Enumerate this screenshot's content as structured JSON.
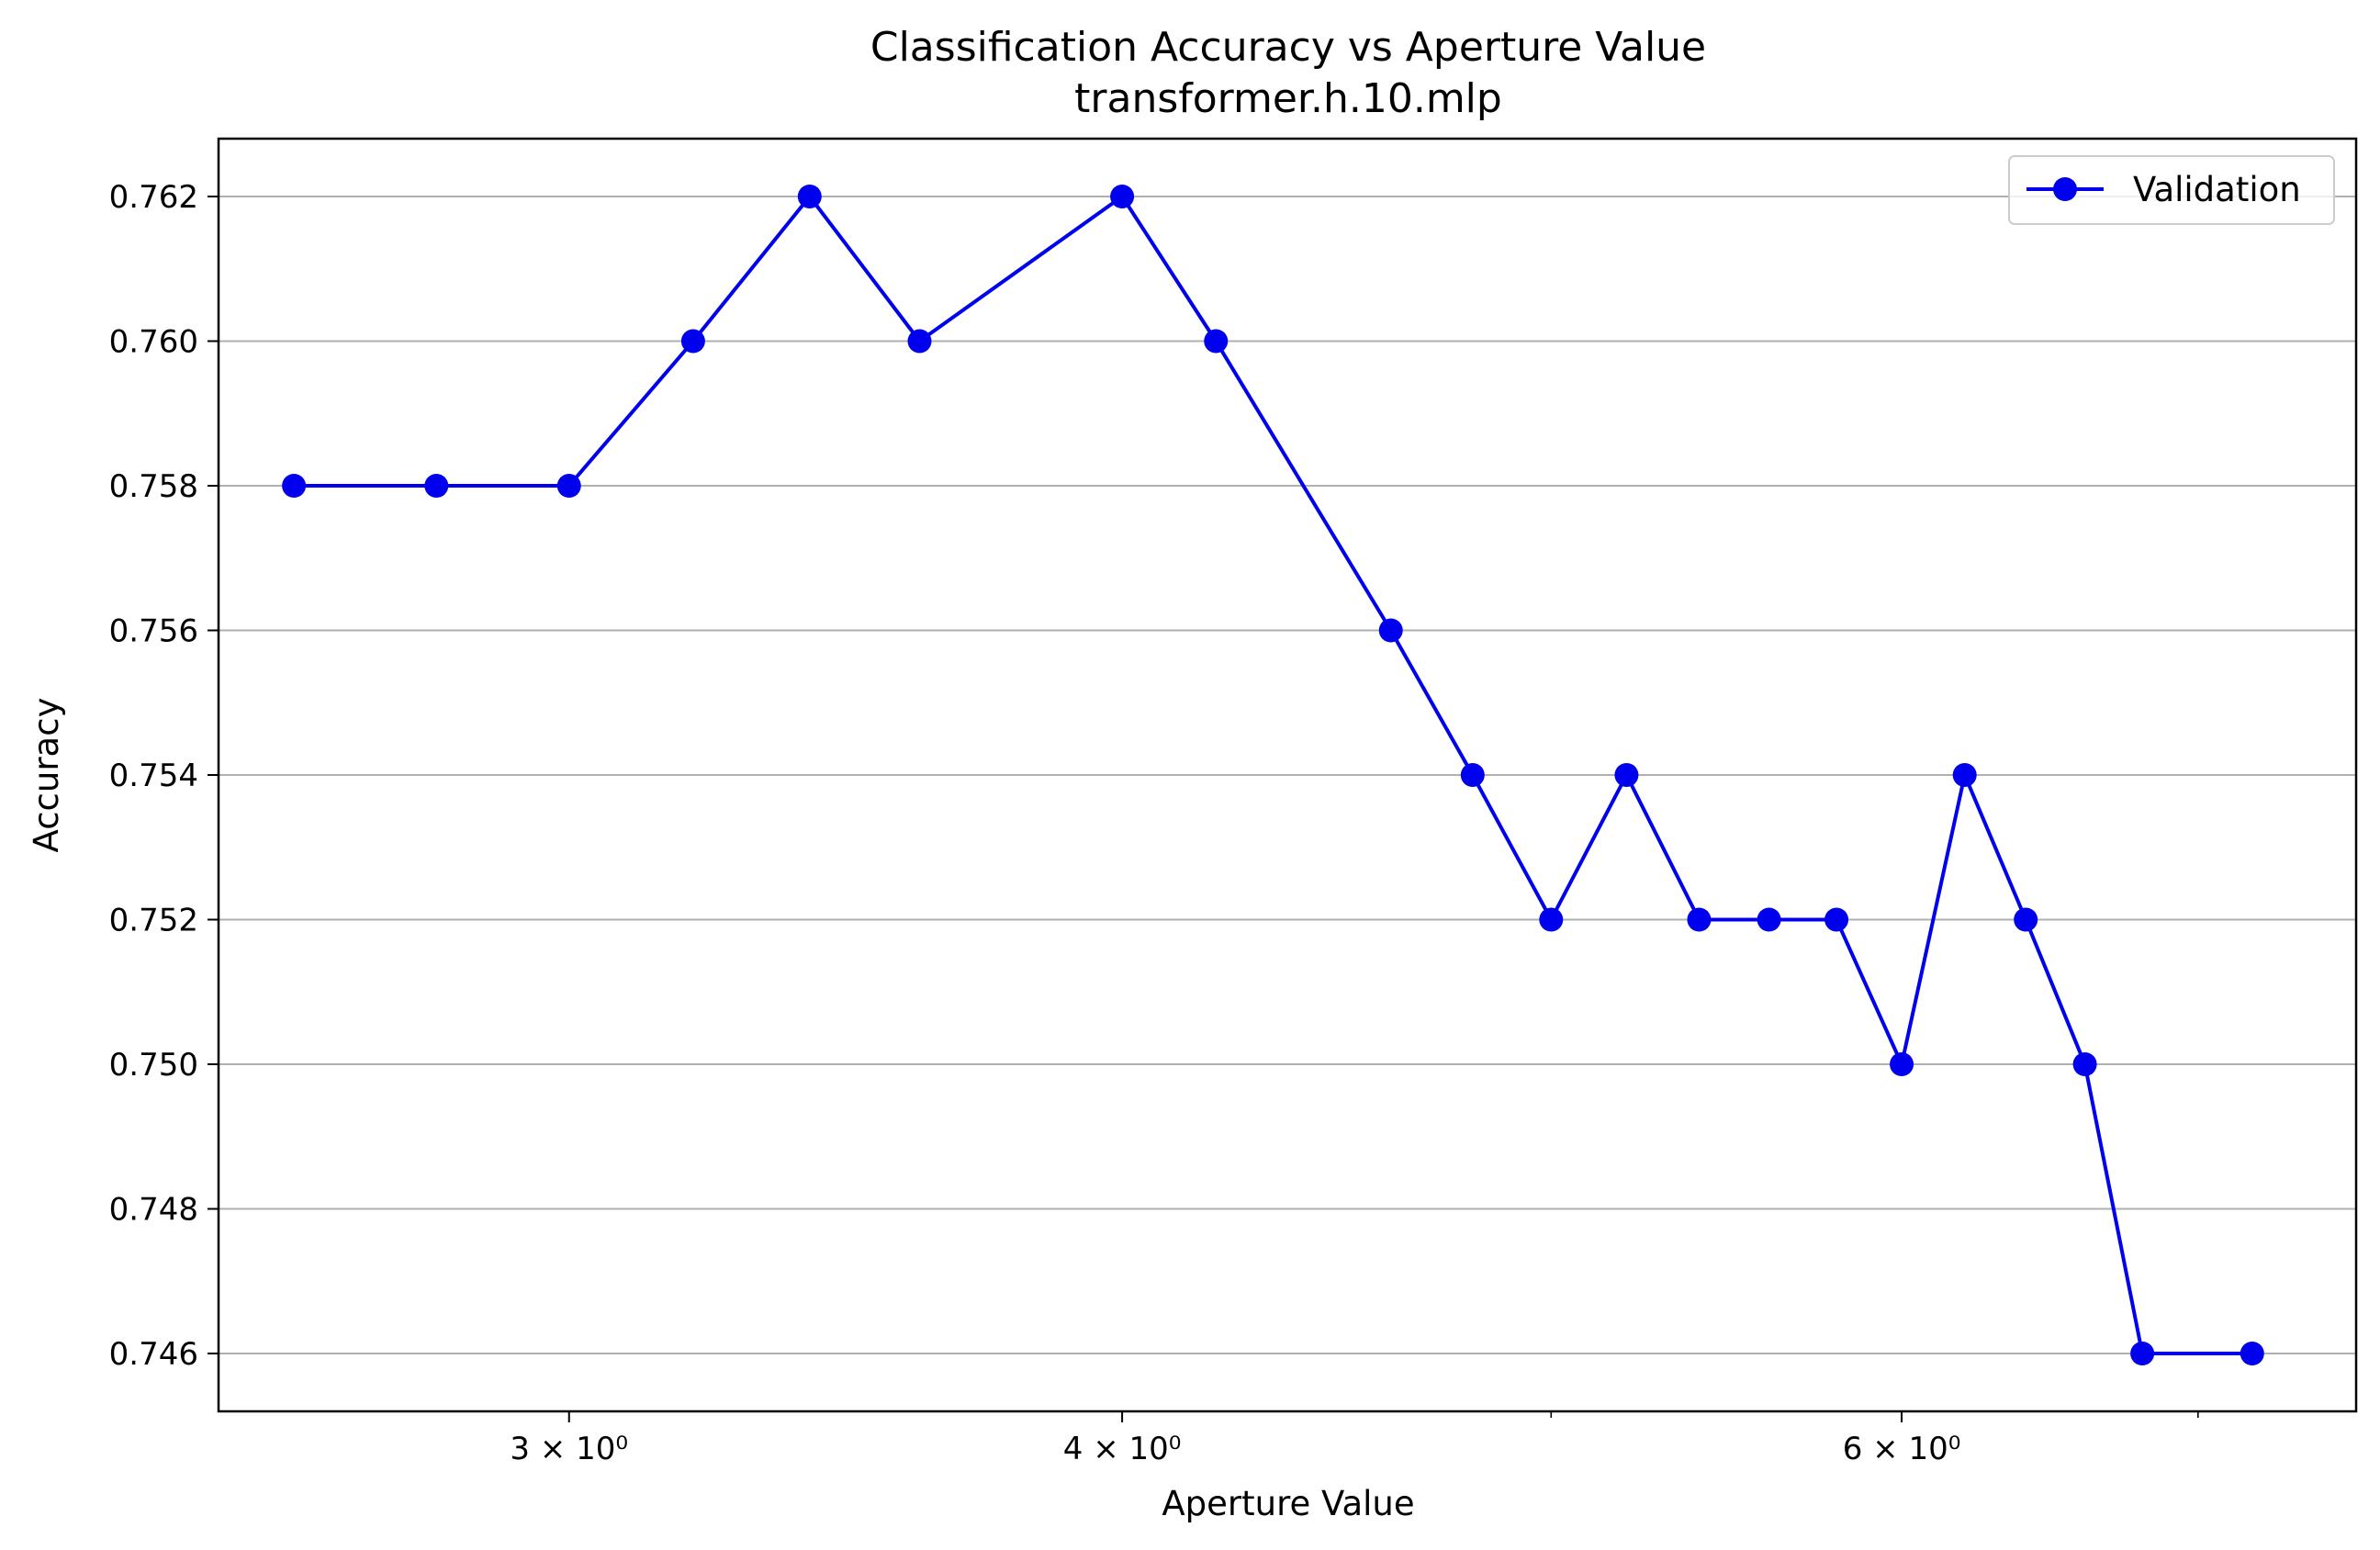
{
  "chart_data": {
    "type": "line",
    "title": "Classification Accuracy vs Aperture Value",
    "subtitle": "transformer.h.10.mlp",
    "xlabel": "Aperture Value",
    "ylabel": "Accuracy",
    "x_scale": "log",
    "xlim": [
      2.5,
      7.6
    ],
    "ylim": [
      0.7452,
      0.7628
    ],
    "x_ticks": [
      {
        "value": 3,
        "label": "3 × 10⁰"
      },
      {
        "value": 4,
        "label": "4 × 10⁰"
      },
      {
        "value": 6,
        "label": "6 × 10⁰"
      }
    ],
    "x_minor_ticks": [
      5,
      7
    ],
    "y_ticks": [
      {
        "value": 0.746,
        "label": "0.746"
      },
      {
        "value": 0.748,
        "label": "0.748"
      },
      {
        "value": 0.75,
        "label": "0.750"
      },
      {
        "value": 0.752,
        "label": "0.752"
      },
      {
        "value": 0.754,
        "label": "0.754"
      },
      {
        "value": 0.756,
        "label": "0.756"
      },
      {
        "value": 0.758,
        "label": "0.758"
      },
      {
        "value": 0.76,
        "label": "0.760"
      },
      {
        "value": 0.762,
        "label": "0.762"
      }
    ],
    "grid": "y",
    "legend_position": "upper-right",
    "series": [
      {
        "name": "Validation",
        "color": "#0000ee",
        "marker": "circle",
        "x": [
          2.6,
          2.8,
          3.0,
          3.2,
          3.4,
          3.6,
          4.0,
          4.2,
          4.6,
          4.8,
          5.0,
          5.2,
          5.4,
          5.6,
          5.8,
          6.0,
          6.2,
          6.4,
          6.6,
          6.8,
          7.2
        ],
        "y": [
          0.758,
          0.758,
          0.758,
          0.76,
          0.762,
          0.76,
          0.762,
          0.76,
          0.756,
          0.754,
          0.752,
          0.754,
          0.752,
          0.752,
          0.752,
          0.75,
          0.754,
          0.752,
          0.75,
          0.746,
          0.746
        ]
      }
    ]
  }
}
